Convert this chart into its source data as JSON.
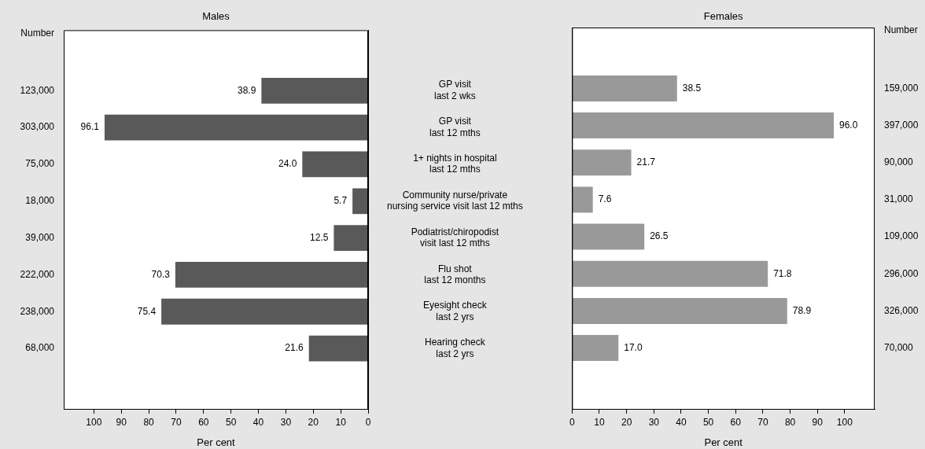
{
  "chart_data": [
    {
      "type": "bar",
      "orientation": "horizontal",
      "title": "Males",
      "xlabel": "Per cent",
      "ylabel": "Number",
      "categories": [
        "GP visit\nlast 2 wks",
        "GP visit\nlast 12 mths",
        "1+ nights in hospital\nlast 12 mths",
        "Community nurse/private\nnursing service visit last 12 mths",
        "Podiatrist/chiropodist\nvisit last 12 mths",
        "Flu shot\nlast 12 months",
        "Eyesight check\nlast 2 yrs",
        "Hearing check\nlast 2 yrs"
      ],
      "values": [
        38.9,
        96.1,
        24.0,
        5.7,
        12.5,
        70.3,
        75.4,
        21.6
      ],
      "value_labels": [
        "38.9",
        "96.1",
        "24.0",
        "5.7",
        "12.5",
        "70.3",
        "75.4",
        "21.6"
      ],
      "color": "#595959",
      "xlim": [
        111,
        0
      ],
      "xticks": [
        100,
        90,
        80,
        70,
        60,
        50,
        40,
        30,
        20,
        10,
        0
      ],
      "annotations": [
        "123,000",
        "303,000",
        "75,000",
        "18,000",
        "39,000",
        "222,000",
        "238,000",
        "68,000"
      ]
    },
    {
      "type": "bar",
      "orientation": "horizontal",
      "title": "Females",
      "xlabel": "Per cent",
      "ylabel": "Number",
      "tick_labels": "x",
      "categories": [
        null,
        null,
        null,
        null,
        null,
        null,
        null,
        null
      ],
      "values": [
        38.5,
        96.0,
        21.7,
        7.6,
        26.5,
        71.8,
        78.9,
        17.0
      ],
      "value_labels": [
        "38.5",
        "96.0",
        "21.7",
        "7.6",
        "26.5",
        "71.8",
        "78.9",
        "17.0"
      ],
      "color": "#999999",
      "xlim": [
        0,
        111
      ],
      "xticks": [
        0,
        10,
        20,
        30,
        40,
        50,
        60,
        70,
        80,
        90,
        100
      ],
      "annotations": [
        "159,000",
        "397,000",
        "90,000",
        "31,000",
        "109,000",
        "296,000",
        "326,000",
        "70,000"
      ]
    }
  ]
}
